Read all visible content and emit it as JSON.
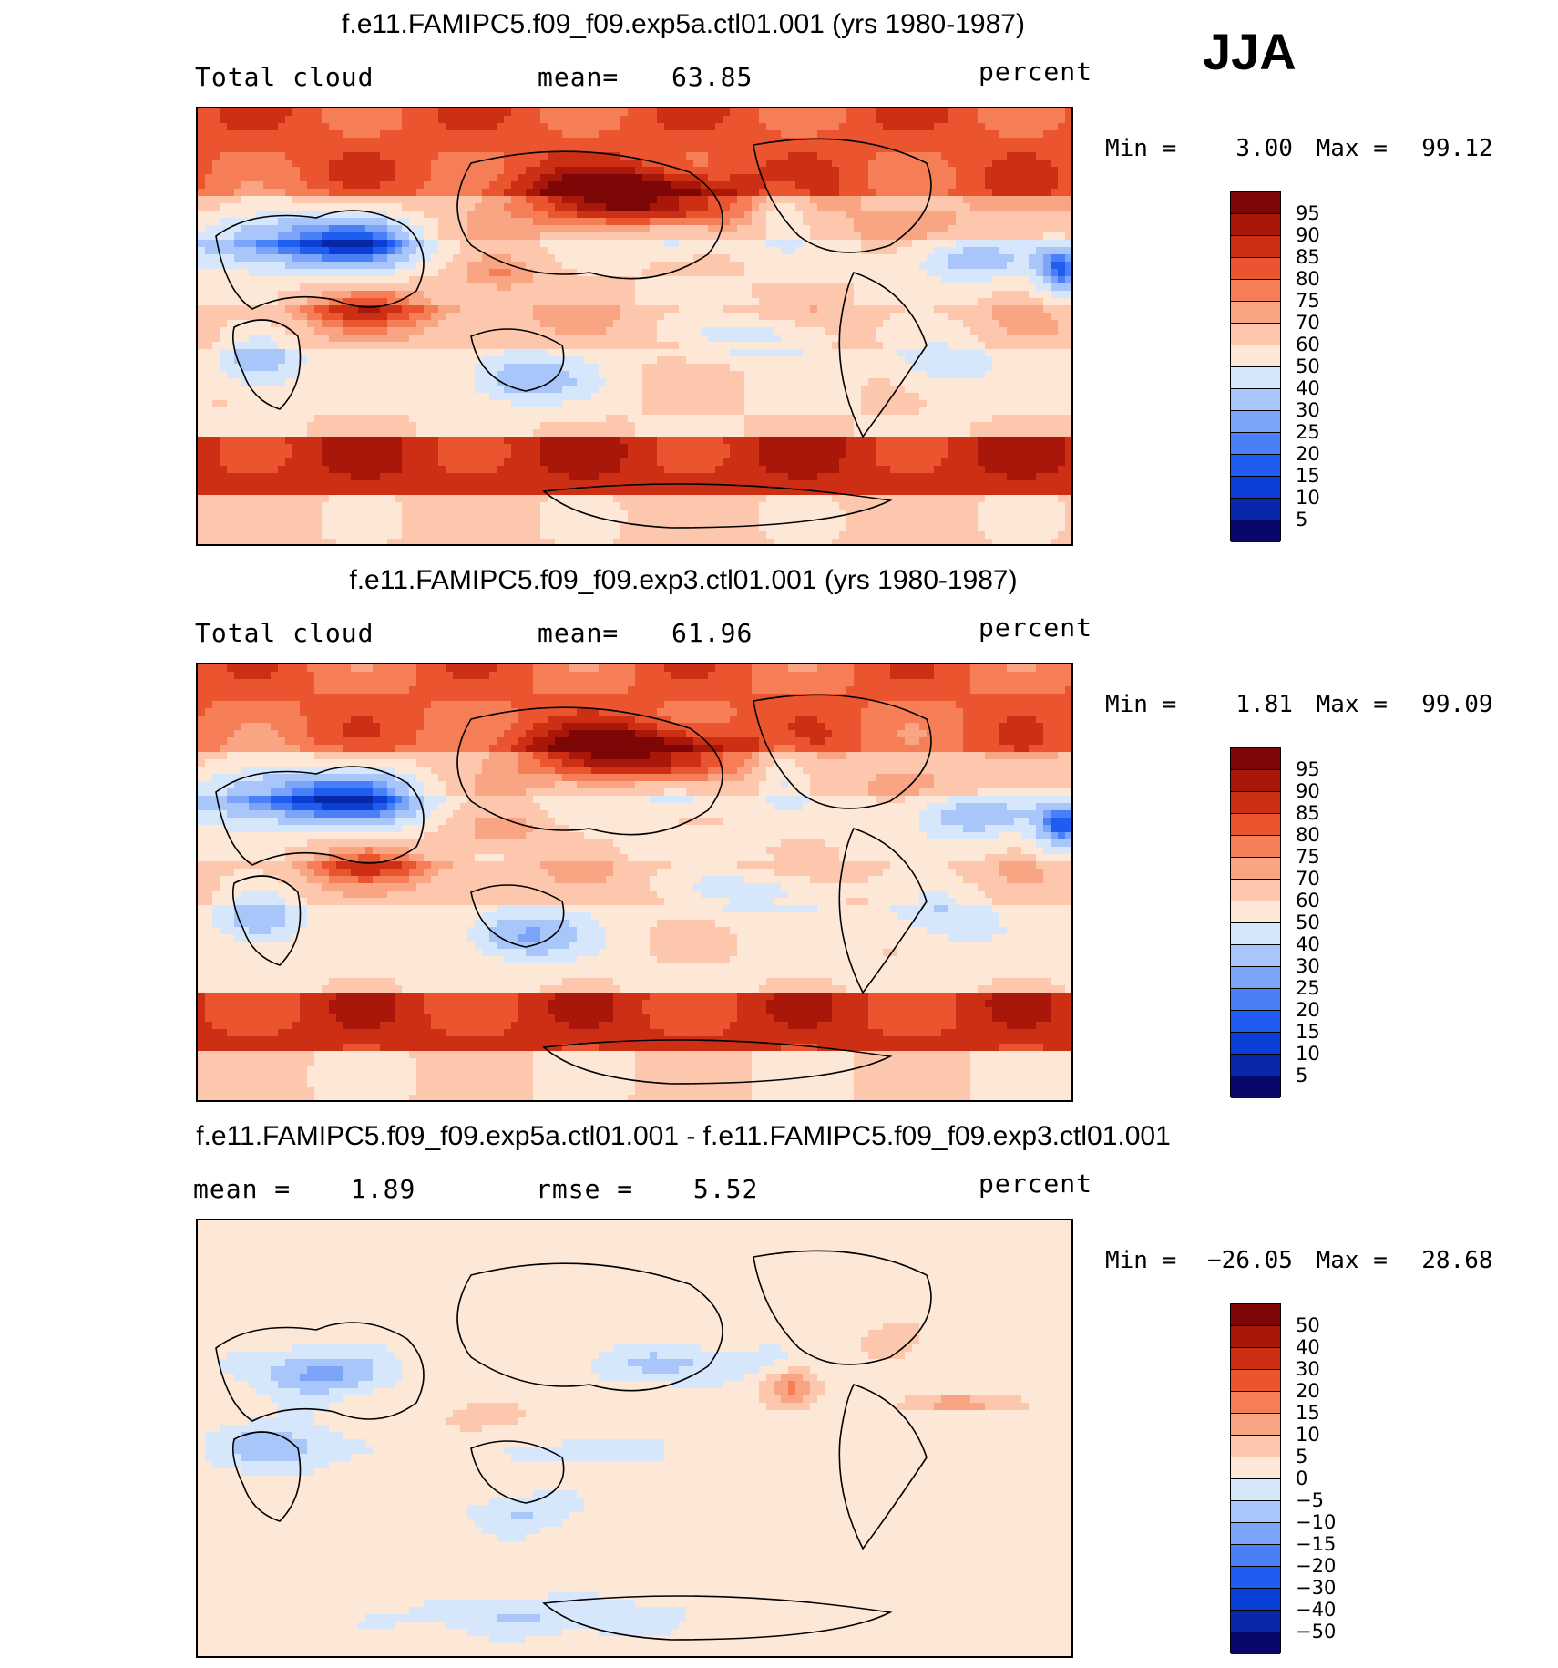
{
  "season": "JJA",
  "panels": [
    {
      "title": "f.e11.FAMIPC5.f09_f09.exp5a.ctl01.001 (yrs 1980-1987)",
      "left_label": "Total cloud",
      "mid_label": "mean=",
      "mid_value": "63.85",
      "units": "percent",
      "min_label": "Min =",
      "min_value": "3.00",
      "max_label": "Max =",
      "max_value": "99.12"
    },
    {
      "title": "f.e11.FAMIPC5.f09_f09.exp3.ctl01.001 (yrs 1980-1987)",
      "left_label": "Total cloud",
      "mid_label": "mean=",
      "mid_value": "61.96",
      "units": "percent",
      "min_label": "Min =",
      "min_value": "1.81",
      "max_label": "Max =",
      "max_value": "99.09"
    },
    {
      "title": "f.e11.FAMIPC5.f09_f09.exp5a.ctl01.001 - f.e11.FAMIPC5.f09_f09.exp3.ctl01.001",
      "left_label": "mean =",
      "left_value": "1.89",
      "mid_label": "rmse =",
      "mid_value": "5.52",
      "units": "percent",
      "min_label": "Min =",
      "min_value": "−26.05",
      "max_label": "Max =",
      "max_value": "28.68"
    }
  ],
  "chart_data": [
    {
      "type": "heatmap",
      "title": "f.e11.FAMIPC5.f09_f09.exp5a.ctl01.001 (yrs 1980-1987)",
      "variable": "Total cloud",
      "units": "percent",
      "mean": 63.85,
      "min": 3.0,
      "max": 99.12,
      "levels": [
        5,
        10,
        15,
        20,
        25,
        30,
        40,
        50,
        60,
        70,
        75,
        80,
        85,
        90,
        95
      ],
      "level_labels": [
        "95",
        "90",
        "85",
        "80",
        "75",
        "70",
        "60",
        "50",
        "40",
        "30",
        "25",
        "20",
        "15",
        "10",
        "5"
      ],
      "colors": [
        "#08086b",
        "#0826a8",
        "#0a3fd6",
        "#1f5cf0",
        "#4a80f7",
        "#7ca4f9",
        "#a9c6fb",
        "#d6e6fb",
        "#fde8d8",
        "#fcc7ad",
        "#f9a482",
        "#f57e57",
        "#ea5530",
        "#cc2f14",
        "#a8170a",
        "#7d0606"
      ]
    },
    {
      "type": "heatmap",
      "title": "f.e11.FAMIPC5.f09_f09.exp3.ctl01.001 (yrs 1980-1987)",
      "variable": "Total cloud",
      "units": "percent",
      "mean": 61.96,
      "min": 1.81,
      "max": 99.09,
      "levels": [
        5,
        10,
        15,
        20,
        25,
        30,
        40,
        50,
        60,
        70,
        75,
        80,
        85,
        90,
        95
      ],
      "level_labels": [
        "95",
        "90",
        "85",
        "80",
        "75",
        "70",
        "60",
        "50",
        "40",
        "30",
        "25",
        "20",
        "15",
        "10",
        "5"
      ],
      "colors": [
        "#08086b",
        "#0826a8",
        "#0a3fd6",
        "#1f5cf0",
        "#4a80f7",
        "#7ca4f9",
        "#a9c6fb",
        "#d6e6fb",
        "#fde8d8",
        "#fcc7ad",
        "#f9a482",
        "#f57e57",
        "#ea5530",
        "#cc2f14",
        "#a8170a",
        "#7d0606"
      ]
    },
    {
      "type": "heatmap",
      "title": "f.e11.FAMIPC5.f09_f09.exp5a.ctl01.001 - f.e11.FAMIPC5.f09_f09.exp3.ctl01.001",
      "units": "percent",
      "mean": 1.89,
      "rmse": 5.52,
      "min": -26.05,
      "max": 28.68,
      "levels": [
        -50,
        -40,
        -30,
        -20,
        -15,
        -10,
        -5,
        0,
        5,
        10,
        15,
        20,
        30,
        40,
        50
      ],
      "level_labels": [
        "50",
        "40",
        "30",
        "20",
        "15",
        "10",
        "5",
        "0",
        "−5",
        "−10",
        "−15",
        "−20",
        "−30",
        "−40",
        "−50"
      ],
      "colors": [
        "#08086b",
        "#0826a8",
        "#0a3fd6",
        "#1f5cf0",
        "#4a80f7",
        "#7ca4f9",
        "#a9c6fb",
        "#d6e6fb",
        "#fde8d8",
        "#fcc7ad",
        "#f9a482",
        "#f57e57",
        "#ea5530",
        "#cc2f14",
        "#a8170a",
        "#7d0606"
      ]
    }
  ]
}
